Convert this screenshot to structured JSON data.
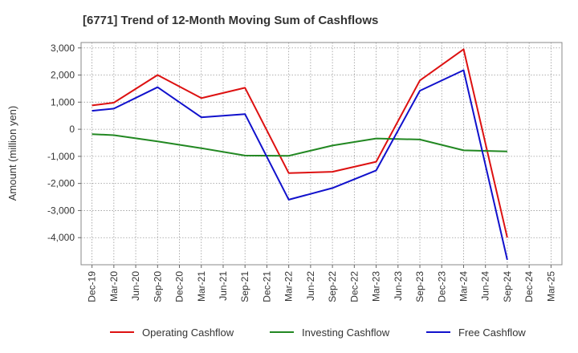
{
  "chart_data": {
    "type": "line",
    "title": "[6771]  Trend of 12-Month Moving Sum of Cashflows",
    "xlabel": "",
    "ylabel": "Amount (million yen)",
    "categories": [
      "Dec-19",
      "Mar-20",
      "Jun-20",
      "Sep-20",
      "Dec-20",
      "Mar-21",
      "Jun-21",
      "Sep-21",
      "Dec-21",
      "Mar-22",
      "Jun-22",
      "Sep-22",
      "Dec-22",
      "Mar-23",
      "Jun-23",
      "Sep-23",
      "Dec-23",
      "Mar-24",
      "Jun-24",
      "Sep-24",
      "Dec-24",
      "Mar-25"
    ],
    "ylim": [
      -5000,
      3200
    ],
    "yticks": [
      -4000,
      -3000,
      -2000,
      -1000,
      0,
      1000,
      2000,
      3000
    ],
    "ytick_labels": [
      "-4,000",
      "-3,000",
      "-2,000",
      "-1,000",
      "0",
      "1,000",
      "2,000",
      "3,000"
    ],
    "grid": true,
    "legend_position": "bottom",
    "series": [
      {
        "name": "Operating Cashflow",
        "color": "#dd1111",
        "values": [
          880,
          980,
          null,
          2000,
          null,
          1150,
          null,
          1530,
          null,
          -1620,
          null,
          -1570,
          null,
          -1200,
          null,
          1800,
          null,
          2950,
          null,
          -4000,
          null,
          null
        ]
      },
      {
        "name": "Investing Cashflow",
        "color": "#228822",
        "values": [
          -180,
          -220,
          null,
          -450,
          null,
          -700,
          null,
          -970,
          null,
          -980,
          null,
          -600,
          null,
          -340,
          null,
          -380,
          null,
          -780,
          null,
          -820,
          null,
          null
        ]
      },
      {
        "name": "Free Cashflow",
        "color": "#1111cc",
        "values": [
          680,
          760,
          null,
          1550,
          null,
          440,
          null,
          560,
          null,
          -2600,
          null,
          -2170,
          null,
          -1520,
          null,
          1420,
          null,
          2180,
          null,
          -4820,
          null,
          null
        ]
      }
    ]
  }
}
